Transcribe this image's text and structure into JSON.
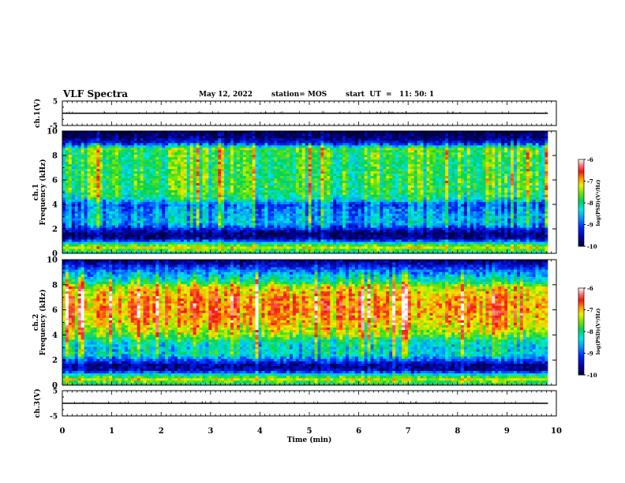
{
  "header": {
    "title": "VLF Spectra",
    "date": "May 12, 2022",
    "station": "station= MOS",
    "start": "start  UT  =   11: 50: 1"
  },
  "chart_data": [
    {
      "type": "line",
      "panel": "ch1-voltage",
      "ylabel": "ch.1(V)",
      "ylim": [
        -5,
        5
      ],
      "yticks": [
        -5,
        5
      ],
      "series": [
        {
          "values": [
            0,
            0
          ]
        }
      ],
      "x": [
        0,
        9.83
      ]
    },
    {
      "type": "heatmap",
      "panel": "ch1-spectrogram",
      "ylabel_channel": "ch.1",
      "ylabel": "Frequency (kHz)",
      "ylim": [
        0,
        10
      ],
      "yticks": [
        "0",
        "2",
        "4",
        "6",
        "8",
        "10"
      ],
      "colorbar": {
        "label": "log(PSD)(V²/Hz)",
        "ticks": [
          "-6",
          "-7",
          "-8",
          "-9",
          "-10"
        ],
        "range": [
          -10,
          -6
        ]
      },
      "profile_log_psd": [
        {
          "f": 0.2,
          "v": -7.9
        },
        {
          "f": 0.5,
          "v": -7.2
        },
        {
          "f": 0.8,
          "v": -8.0
        },
        {
          "f": 1.2,
          "v": -9.6
        },
        {
          "f": 1.6,
          "v": -9.8
        },
        {
          "f": 2.0,
          "v": -9.3
        },
        {
          "f": 2.5,
          "v": -8.5
        },
        {
          "f": 3.0,
          "v": -8.6
        },
        {
          "f": 3.5,
          "v": -8.7
        },
        {
          "f": 4.0,
          "v": -9.0
        },
        {
          "f": 4.5,
          "v": -8.1
        },
        {
          "f": 5.0,
          "v": -7.9
        },
        {
          "f": 6.0,
          "v": -7.8
        },
        {
          "f": 7.0,
          "v": -7.9
        },
        {
          "f": 8.0,
          "v": -7.8
        },
        {
          "f": 8.6,
          "v": -7.7
        },
        {
          "f": 9.0,
          "v": -9.2
        },
        {
          "f": 9.5,
          "v": -9.8
        },
        {
          "f": 10.0,
          "v": -10.0
        }
      ]
    },
    {
      "type": "heatmap",
      "panel": "ch2-spectrogram",
      "ylabel_channel": "ch.2",
      "ylabel": "Frequency (kHz)",
      "ylim": [
        0,
        10
      ],
      "yticks": [
        "0",
        "2",
        "4",
        "6",
        "8",
        "10"
      ],
      "colorbar": {
        "label": "log(PSD)(V²/Hz)",
        "ticks": [
          "-6",
          "-7",
          "-8",
          "-9",
          "-10"
        ],
        "range": [
          -10,
          -6
        ]
      },
      "profile_log_psd": [
        {
          "f": 0.2,
          "v": -7.8
        },
        {
          "f": 0.5,
          "v": -7.3
        },
        {
          "f": 0.8,
          "v": -8.1
        },
        {
          "f": 1.2,
          "v": -9.5
        },
        {
          "f": 1.6,
          "v": -9.7
        },
        {
          "f": 2.0,
          "v": -9.0
        },
        {
          "f": 2.5,
          "v": -8.2
        },
        {
          "f": 3.0,
          "v": -8.3
        },
        {
          "f": 3.5,
          "v": -8.1
        },
        {
          "f": 4.0,
          "v": -7.5
        },
        {
          "f": 5.0,
          "v": -7.0
        },
        {
          "f": 6.0,
          "v": -6.8
        },
        {
          "f": 7.0,
          "v": -6.9
        },
        {
          "f": 7.8,
          "v": -7.2
        },
        {
          "f": 8.3,
          "v": -8.0
        },
        {
          "f": 8.8,
          "v": -8.5
        },
        {
          "f": 9.3,
          "v": -9.0
        },
        {
          "f": 9.7,
          "v": -9.5
        },
        {
          "f": 10.0,
          "v": -9.8
        }
      ]
    },
    {
      "type": "line",
      "panel": "ch3-voltage",
      "ylabel": "ch.3(V)",
      "ylim": [
        -5,
        5
      ],
      "yticks": [
        -5,
        5
      ],
      "series": [
        {
          "values": [
            0,
            0
          ]
        }
      ],
      "x": [
        0,
        9.83
      ]
    }
  ],
  "xaxis": {
    "label": "Time  (min)",
    "range": [
      0,
      10
    ],
    "ticks": [
      "0",
      "1",
      "2",
      "3",
      "4",
      "5",
      "6",
      "7",
      "8",
      "9",
      "10"
    ]
  }
}
